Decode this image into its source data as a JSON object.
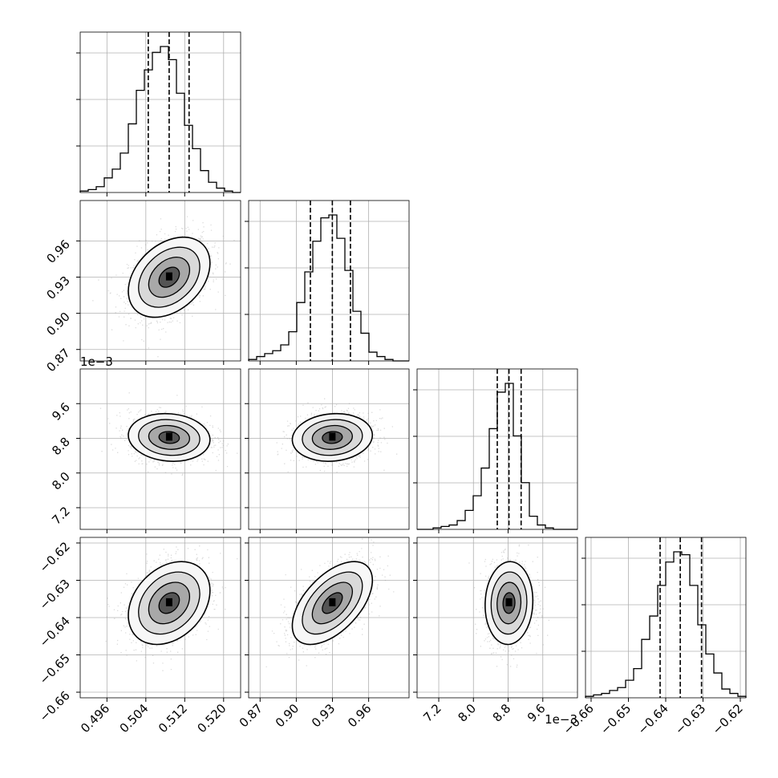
{
  "chart_data": {
    "type": "corner",
    "grid": true,
    "parameters": [
      {
        "ticks": [
          0.496,
          0.504,
          0.512,
          0.52
        ],
        "tick_labels": [
          "0.496",
          "0.504",
          "0.512",
          "0.520"
        ],
        "range": [
          0.4905,
          0.5235
        ],
        "offset_label": "",
        "quantiles": [
          0.5045,
          0.5088,
          0.5129
        ],
        "median": 0.5088
      },
      {
        "ticks": [
          0.87,
          0.9,
          0.93,
          0.96
        ],
        "tick_labels": [
          "0.87",
          "0.90",
          "0.93",
          "0.96"
        ],
        "range": [
          0.8605,
          0.9935
        ],
        "offset_label": "",
        "quantiles": [
          0.9117,
          0.9299,
          0.9449
        ],
        "median": 0.9299
      },
      {
        "ticks": [
          7.2,
          8.0,
          8.8,
          9.6
        ],
        "tick_labels": [
          "7.2",
          "8.0",
          "8.8",
          "9.6"
        ],
        "range": [
          6.7,
          10.4
        ],
        "offset_label": "1e−3",
        "quantiles": [
          8.55,
          8.82,
          9.1
        ],
        "median": 8.82
      },
      {
        "ticks": [
          -0.66,
          -0.65,
          -0.64,
          -0.63,
          -0.62
        ],
        "tick_labels": [
          "−0.66",
          "−0.65",
          "−0.64",
          "−0.63",
          "−0.62"
        ],
        "range": [
          -0.6615,
          -0.6185
        ],
        "offset_label": "",
        "quantiles": [
          -0.6415,
          -0.6361,
          -0.6304
        ],
        "median": -0.6361
      }
    ],
    "histograms": [
      {
        "param": 0,
        "heights": [
          0.01,
          0.02,
          0.04,
          0.1,
          0.16,
          0.27,
          0.47,
          0.7,
          0.84,
          0.96,
          1.0,
          0.91,
          0.68,
          0.46,
          0.3,
          0.15,
          0.07,
          0.03,
          0.01,
          0.0
        ]
      },
      {
        "param": 1,
        "heights": [
          0.01,
          0.03,
          0.05,
          0.07,
          0.11,
          0.2,
          0.4,
          0.61,
          0.82,
          0.98,
          1.0,
          0.84,
          0.62,
          0.34,
          0.19,
          0.06,
          0.03,
          0.01,
          0.0,
          0.0
        ]
      },
      {
        "param": 2,
        "heights": [
          0.0,
          0.0,
          0.01,
          0.02,
          0.03,
          0.06,
          0.13,
          0.23,
          0.42,
          0.69,
          0.94,
          1.0,
          0.64,
          0.32,
          0.09,
          0.03,
          0.01,
          0.0,
          0.0,
          0.0
        ]
      },
      {
        "param": 3,
        "heights": [
          0.01,
          0.02,
          0.03,
          0.05,
          0.07,
          0.12,
          0.2,
          0.4,
          0.56,
          0.77,
          0.93,
          1.0,
          0.98,
          0.77,
          0.5,
          0.3,
          0.17,
          0.06,
          0.03,
          0.01
        ]
      }
    ],
    "pairs": [
      {
        "x_param": 0,
        "y_param": 1,
        "correlation": 0.35
      },
      {
        "x_param": 0,
        "y_param": 2,
        "correlation": -0.1
      },
      {
        "x_param": 1,
        "y_param": 2,
        "correlation": 0.1
      },
      {
        "x_param": 0,
        "y_param": 3,
        "correlation": 0.3
      },
      {
        "x_param": 1,
        "y_param": 3,
        "correlation": 0.55
      },
      {
        "x_param": 2,
        "y_param": 3,
        "correlation": 0.05
      }
    ],
    "colors": {
      "lines": "#000000",
      "grid": "#b0b0b0",
      "samples": "#9a9a9a"
    }
  }
}
